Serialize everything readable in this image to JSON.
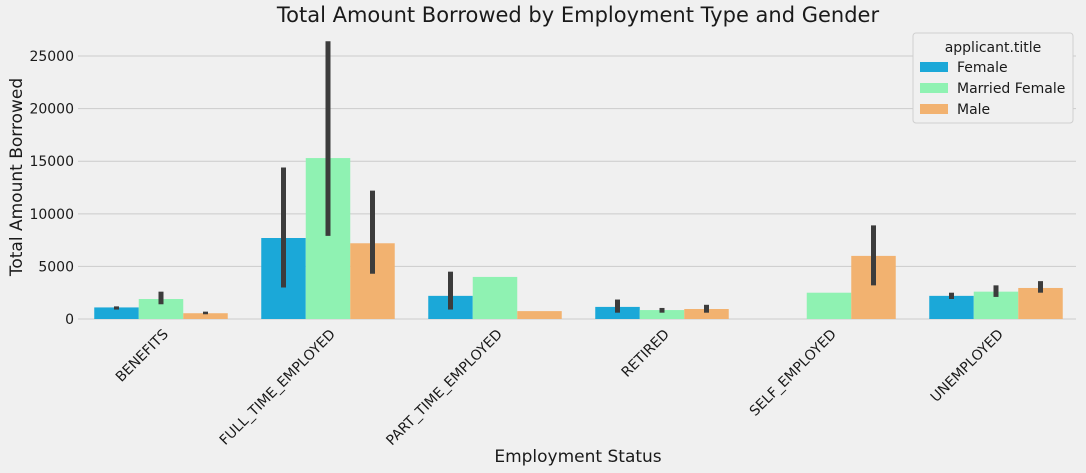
{
  "chart_data": {
    "type": "bar",
    "title": "Total Amount Borrowed by Employment Type and Gender",
    "xlabel": "Employment Status",
    "ylabel": "Total Amount Borrowed",
    "ylim": [
      0,
      27000
    ],
    "yticks": [
      0,
      5000,
      10000,
      15000,
      20000,
      25000
    ],
    "grid": true,
    "legend_position": "top-right",
    "legend_title": "applicant.title",
    "categories": [
      "BENEFITS",
      "FULL_TIME_EMPLOYED",
      "PART_TIME_EMPLOYED",
      "RETIRED",
      "SELF_EMPLOYED",
      "UNEMPLOYED"
    ],
    "series": [
      {
        "name": "Female",
        "color": "#1ba8d8",
        "values": [
          1100,
          7700,
          2200,
          1150,
          null,
          2200
        ],
        "error": [
          [
            900,
            1200
          ],
          [
            3000,
            14400
          ],
          [
            900,
            4500
          ],
          [
            600,
            1850
          ],
          null,
          [
            1900,
            2500
          ]
        ]
      },
      {
        "name": "Married Female",
        "color": "#8ff2b2",
        "values": [
          1900,
          15300,
          4000,
          850,
          2500,
          2600
        ],
        "error": [
          [
            1400,
            2600
          ],
          [
            7900,
            26400
          ],
          null,
          [
            600,
            1050
          ],
          null,
          [
            2100,
            3200
          ]
        ]
      },
      {
        "name": "Male",
        "color": "#f2b270",
        "values": [
          550,
          7200,
          750,
          950,
          6000,
          2950
        ],
        "error": [
          [
            450,
            700
          ],
          [
            4300,
            12200
          ],
          null,
          [
            600,
            1350
          ],
          [
            3200,
            8900
          ],
          [
            2500,
            3600
          ]
        ]
      }
    ]
  }
}
